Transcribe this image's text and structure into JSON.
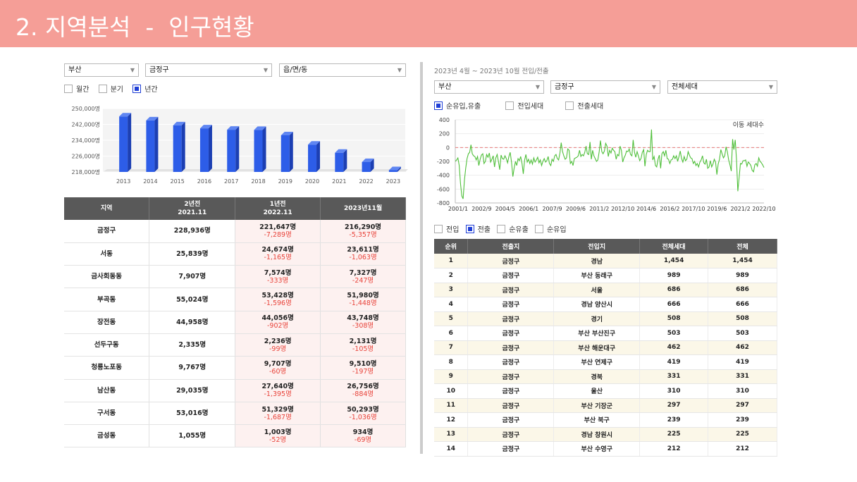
{
  "header": {
    "title": "2. 지역분석  -  인구현황"
  },
  "left": {
    "selects": [
      "부산",
      "금정구",
      "읍/면/동"
    ],
    "period_options": [
      {
        "label": "월간",
        "checked": false
      },
      {
        "label": "분기",
        "checked": false
      },
      {
        "label": "년간",
        "checked": true
      }
    ],
    "table": {
      "headers": [
        "지역",
        "2년전\n2021.11",
        "1년전\n2022.11",
        "2023년11월"
      ],
      "rows": [
        {
          "region": "금정구",
          "y2021": "228,936명",
          "y2022": "221,647명",
          "y2022_chg": "-7,289명",
          "y2023": "216,290명",
          "y2023_chg": "-5,357명"
        },
        {
          "region": "서동",
          "y2021": "25,839명",
          "y2022": "24,674명",
          "y2022_chg": "-1,165명",
          "y2023": "23,611명",
          "y2023_chg": "-1,063명"
        },
        {
          "region": "금사회동동",
          "y2021": "7,907명",
          "y2022": "7,574명",
          "y2022_chg": "-333명",
          "y2023": "7,327명",
          "y2023_chg": "-247명"
        },
        {
          "region": "부곡동",
          "y2021": "55,024명",
          "y2022": "53,428명",
          "y2022_chg": "-1,596명",
          "y2023": "51,980명",
          "y2023_chg": "-1,448명"
        },
        {
          "region": "장전동",
          "y2021": "44,958명",
          "y2022": "44,056명",
          "y2022_chg": "-902명",
          "y2023": "43,748명",
          "y2023_chg": "-308명"
        },
        {
          "region": "선두구동",
          "y2021": "2,335명",
          "y2022": "2,236명",
          "y2022_chg": "-99명",
          "y2023": "2,131명",
          "y2023_chg": "-105명"
        },
        {
          "region": "청룡노포동",
          "y2021": "9,767명",
          "y2022": "9,707명",
          "y2022_chg": "-60명",
          "y2023": "9,510명",
          "y2023_chg": "-197명"
        },
        {
          "region": "남산동",
          "y2021": "29,035명",
          "y2022": "27,640명",
          "y2022_chg": "-1,395명",
          "y2023": "26,756명",
          "y2023_chg": "-884명"
        },
        {
          "region": "구서동",
          "y2021": "53,016명",
          "y2022": "51,329명",
          "y2022_chg": "-1,687명",
          "y2023": "50,293명",
          "y2023_chg": "-1,036명"
        },
        {
          "region": "금성동",
          "y2021": "1,055명",
          "y2022": "1,003명",
          "y2022_chg": "-52명",
          "y2023": "934명",
          "y2023_chg": "-69명"
        }
      ]
    }
  },
  "right": {
    "title": "2023년 4월 ~ 2023년 10월 전입/전출",
    "selects": [
      "부산",
      "금정구",
      "전체세대"
    ],
    "series_options": [
      {
        "label": "순유입,유출",
        "checked": true
      },
      {
        "label": "전입세대",
        "checked": false
      },
      {
        "label": "전출세대",
        "checked": false
      }
    ],
    "table_options": [
      {
        "label": "전입",
        "checked": false
      },
      {
        "label": "전출",
        "checked": true
      },
      {
        "label": "순유출",
        "checked": false
      },
      {
        "label": "순유입",
        "checked": false
      }
    ],
    "table": {
      "headers": [
        "순위",
        "전출지",
        "전입지",
        "전체세대",
        "전체"
      ],
      "rows": [
        [
          "1",
          "금정구",
          "경남",
          "1,454",
          "1,454"
        ],
        [
          "2",
          "금정구",
          "부산 동래구",
          "989",
          "989"
        ],
        [
          "3",
          "금정구",
          "서울",
          "686",
          "686"
        ],
        [
          "4",
          "금정구",
          "경남 양산시",
          "666",
          "666"
        ],
        [
          "5",
          "금정구",
          "경기",
          "508",
          "508"
        ],
        [
          "6",
          "금정구",
          "부산 부산진구",
          "503",
          "503"
        ],
        [
          "7",
          "금정구",
          "부산 해운대구",
          "462",
          "462"
        ],
        [
          "8",
          "금정구",
          "부산 연제구",
          "419",
          "419"
        ],
        [
          "9",
          "금정구",
          "경북",
          "331",
          "331"
        ],
        [
          "10",
          "금정구",
          "울산",
          "310",
          "310"
        ],
        [
          "11",
          "금정구",
          "부산 기장군",
          "297",
          "297"
        ],
        [
          "12",
          "금정구",
          "부산 북구",
          "239",
          "239"
        ],
        [
          "13",
          "금정구",
          "경남 창원시",
          "225",
          "225"
        ],
        [
          "14",
          "금정구",
          "부산 수영구",
          "212",
          "212"
        ]
      ]
    }
  },
  "chart_data": [
    {
      "type": "bar",
      "categories": [
        "2013",
        "2014",
        "2015",
        "2016",
        "2017",
        "2018",
        "2019",
        "2020",
        "2021",
        "2022",
        "2023"
      ],
      "values": [
        246000,
        244000,
        241500,
        240000,
        239300,
        239200,
        236500,
        231800,
        227700,
        223000,
        218900
      ],
      "ytick_labels": [
        "250,000명",
        "242,000명",
        "234,000명",
        "226,000명",
        "218,000명"
      ],
      "yticks": [
        250000,
        242000,
        234000,
        226000,
        218000
      ],
      "ylim": [
        218000,
        250000
      ],
      "color": "#2d5de8"
    },
    {
      "type": "line",
      "annotation": "이동 세대수",
      "xtick_labels": [
        "2001/1",
        "2002/9",
        "2004/5",
        "2006/1",
        "2007/9",
        "2009/6",
        "2011/2",
        "2012/10",
        "2014/6",
        "2016/2",
        "2017/10",
        "2019/6",
        "2021/2",
        "2022/10"
      ],
      "ytick_labels": [
        "400",
        "200",
        "0",
        "-200",
        "-400",
        "-600",
        "-800"
      ],
      "yticks": [
        400,
        200,
        0,
        -200,
        -400,
        -600,
        -800
      ],
      "ylim": [
        -800,
        400
      ],
      "reference_line": 0,
      "color": "#4fbf3a",
      "reference_color": "#e77a7a",
      "values": [
        -200,
        -180,
        -150,
        -260,
        -520,
        -700,
        -740,
        -470,
        -300,
        -160,
        -90,
        -70,
        40,
        -90,
        -120,
        -130,
        -180,
        -130,
        -260,
        -170,
        -110,
        -90,
        -230,
        -200,
        -100,
        -140,
        -80,
        -210,
        -170,
        -120,
        -280,
        -150,
        -100,
        -200,
        -320,
        -110,
        -160,
        -170,
        -120,
        -160,
        -220,
        -130,
        -70,
        -210,
        -420,
        -300,
        -200,
        -260,
        -160,
        -190,
        -130,
        -230,
        -380,
        -180,
        -100,
        -210,
        -170,
        -230,
        -180,
        -240,
        -150,
        -210,
        -180,
        -140,
        -220,
        -180,
        -260,
        -200,
        -160,
        -210,
        -190,
        -130,
        -230,
        -260,
        -170,
        -200,
        -120,
        -100,
        -160,
        -180,
        -80,
        70,
        -60,
        -120,
        -170,
        -150,
        -20,
        -40,
        -230,
        -200,
        -260,
        -160,
        -150,
        -140,
        -120,
        -40,
        -130,
        -100,
        -120,
        -70,
        20,
        -90,
        -100,
        80,
        -170,
        -40,
        -120,
        -160,
        -200,
        -180,
        -60,
        100,
        -60,
        -90,
        -50,
        60,
        20,
        -130,
        -40,
        -80,
        -10,
        -40,
        -60,
        -170,
        -100,
        -120,
        20,
        -40,
        -210,
        -150,
        -110,
        -50,
        -60,
        -20,
        -100,
        -120,
        110,
        -70,
        -140,
        -60,
        -120,
        -190,
        -160,
        -70,
        -30,
        -270,
        -100,
        -40,
        -60,
        -60,
        260,
        -180,
        -130,
        -260,
        -280,
        -170,
        -110,
        -300,
        -90,
        -60,
        -120,
        -40,
        -160,
        -170,
        -230,
        -180,
        -170,
        -120,
        -160,
        -120,
        -200,
        -130,
        -50,
        -160,
        -210,
        -130,
        -190,
        -170,
        -60,
        -110,
        -150,
        -160,
        -230,
        -200,
        -260,
        -230,
        -280,
        -210,
        -180,
        -120,
        -220,
        -240,
        -170,
        -300,
        -280,
        -190,
        -280,
        -240,
        -170,
        -210,
        -390,
        -240,
        -170,
        -30,
        -90,
        -150,
        -120,
        10,
        -60,
        -180,
        -250,
        -340,
        120,
        -30,
        110,
        -170,
        -630,
        -440,
        -230,
        -240,
        -190,
        -190,
        -180,
        -270,
        -210,
        -230,
        -260,
        -330,
        -350,
        -250,
        -230,
        -270,
        -150,
        -200,
        -220,
        -250,
        -290
      ]
    }
  ]
}
